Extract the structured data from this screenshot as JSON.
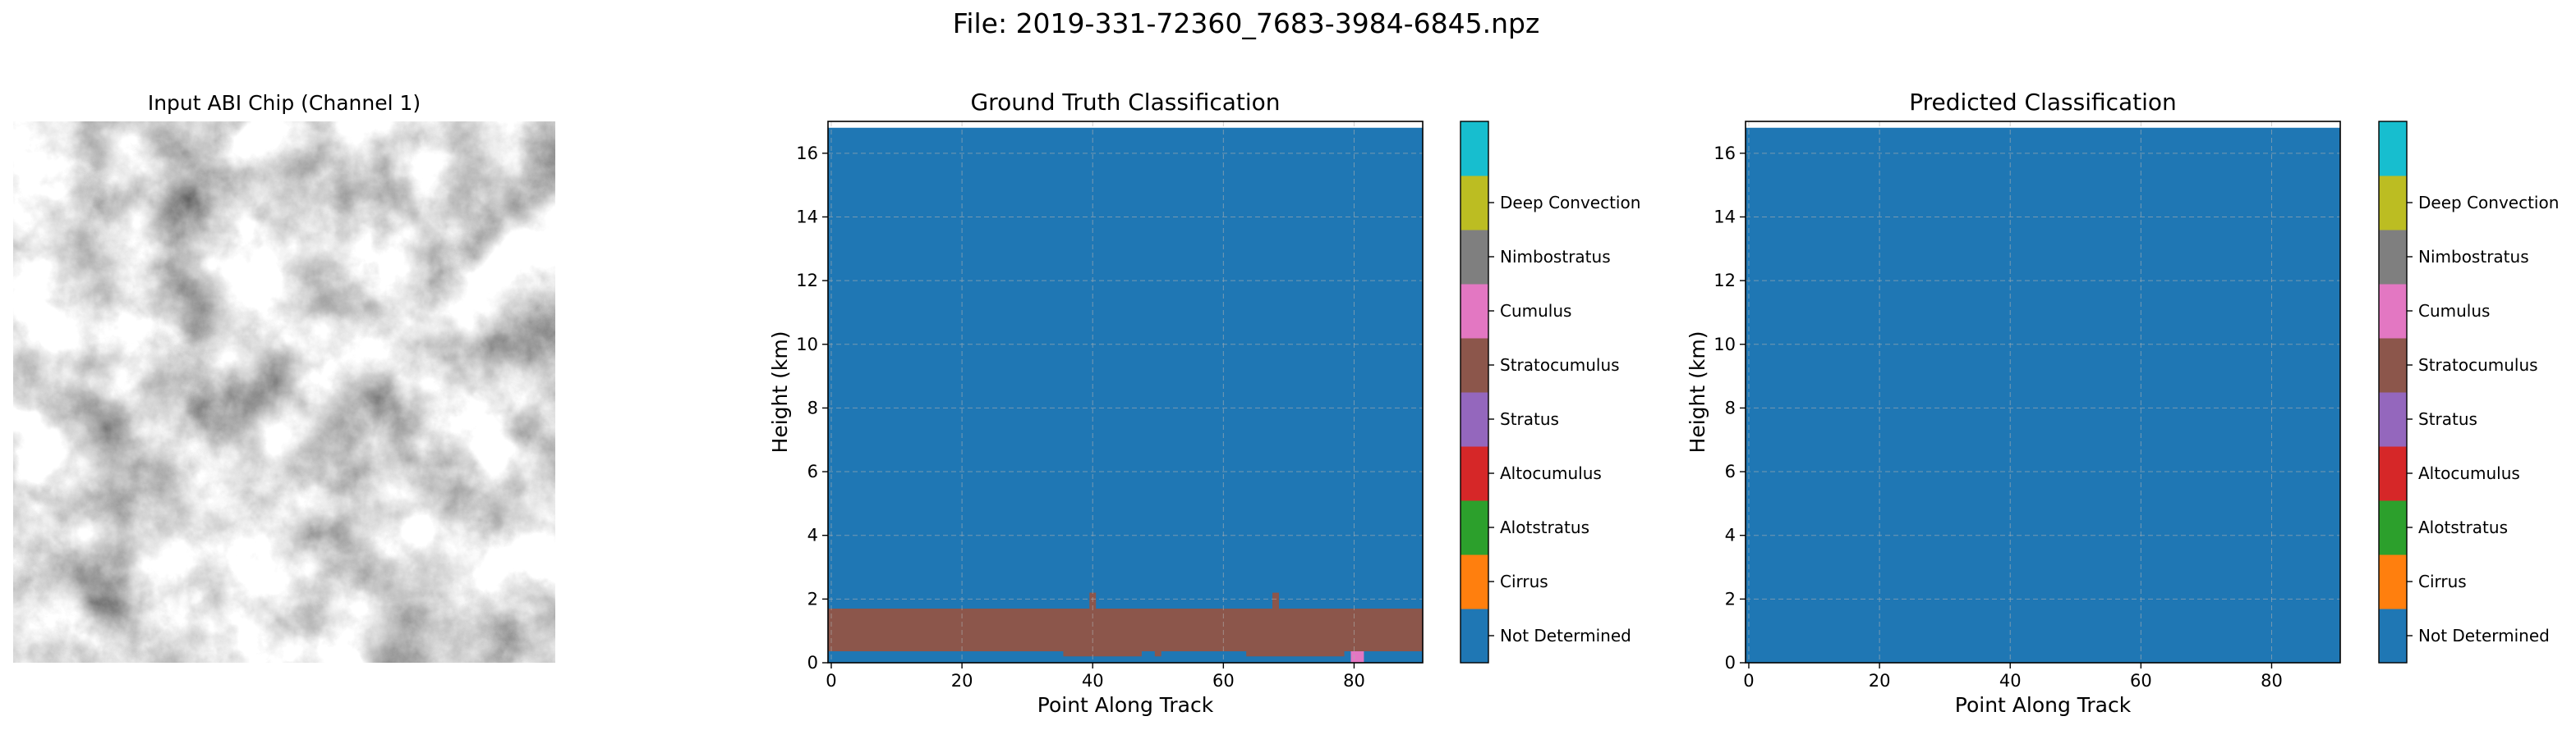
{
  "figure_title": "File: 2019-331-72360_7683-3984-6845.npz",
  "image_panel": {
    "title": "Input ABI Chip (Channel 1)"
  },
  "class_labels": [
    "Not Determined",
    "Cirrus",
    "Alotstratus",
    "Altocumulus",
    "Stratus",
    "Stratocumulus",
    "Cumulus",
    "Nimbostratus",
    "Deep Convection"
  ],
  "class_colors": [
    "#1f77b4",
    "#ff7f0e",
    "#2ca02c",
    "#d62728",
    "#9467bd",
    "#8c564b",
    "#e377c2",
    "#7f7f7f",
    "#bcbd22",
    "#17becf"
  ],
  "chart_data": [
    {
      "type": "heatmap",
      "title": "Ground Truth Classification",
      "xlabel": "Point Along Track",
      "ylabel": "Height (km)",
      "xlim": [
        -0.5,
        90.5
      ],
      "ylim": [
        0,
        17
      ],
      "data_top_km": 16.8,
      "xticks": [
        0,
        20,
        40,
        60,
        80
      ],
      "yticks": [
        0,
        2,
        4,
        6,
        8,
        10,
        12,
        14,
        16
      ],
      "grid": true,
      "background_class": "Not Determined",
      "regions": [
        {
          "class": "Stratocumulus",
          "x": [
            -0.5,
            90.5
          ],
          "y": [
            0.36,
            1.7
          ]
        },
        {
          "class": "Stratocumulus",
          "x": [
            35.5,
            47.5
          ],
          "y": [
            0.2,
            0.36
          ]
        },
        {
          "class": "Stratocumulus",
          "x": [
            49.5,
            50.5
          ],
          "y": [
            0.2,
            0.36
          ]
        },
        {
          "class": "Stratocumulus",
          "x": [
            63.5,
            78.5
          ],
          "y": [
            0.2,
            0.36
          ]
        },
        {
          "class": "Stratocumulus",
          "x": [
            39.5,
            40.5
          ],
          "y": [
            1.7,
            2.2
          ]
        },
        {
          "class": "Stratocumulus",
          "x": [
            67.5,
            68.5
          ],
          "y": [
            1.7,
            2.2
          ]
        },
        {
          "class": "Cumulus",
          "x": [
            79.5,
            81.5
          ],
          "y": [
            0.0,
            0.36
          ]
        }
      ],
      "colorbar": {
        "labels": [
          "Not Determined",
          "Cirrus",
          "Alotstratus",
          "Altocumulus",
          "Stratus",
          "Stratocumulus",
          "Cumulus",
          "Nimbostratus",
          "Deep Convection"
        ]
      }
    },
    {
      "type": "heatmap",
      "title": "Predicted Classification",
      "xlabel": "Point Along Track",
      "ylabel": "Height (km)",
      "xlim": [
        -0.5,
        90.5
      ],
      "ylim": [
        0,
        17
      ],
      "data_top_km": 16.8,
      "xticks": [
        0,
        20,
        40,
        60,
        80
      ],
      "yticks": [
        0,
        2,
        4,
        6,
        8,
        10,
        12,
        14,
        16
      ],
      "grid": true,
      "background_class": "Not Determined",
      "regions": [],
      "colorbar": {
        "labels": [
          "Not Determined",
          "Cirrus",
          "Alotstratus",
          "Altocumulus",
          "Stratus",
          "Stratocumulus",
          "Cumulus",
          "Nimbostratus",
          "Deep Convection"
        ]
      }
    }
  ]
}
